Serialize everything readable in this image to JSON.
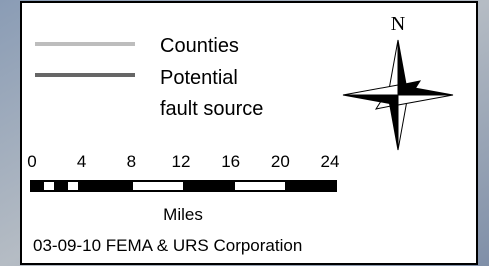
{
  "legend": {
    "items": [
      {
        "label": "Counties"
      },
      {
        "label_lines": [
          "Potential",
          "fault source"
        ]
      }
    ]
  },
  "north_arrow": {
    "label": "N"
  },
  "scale": {
    "ticks": [
      0,
      4,
      8,
      12,
      16,
      20,
      24
    ],
    "unit": "Miles"
  },
  "credit": "03-09-10 FEMA & URS Corporation"
}
